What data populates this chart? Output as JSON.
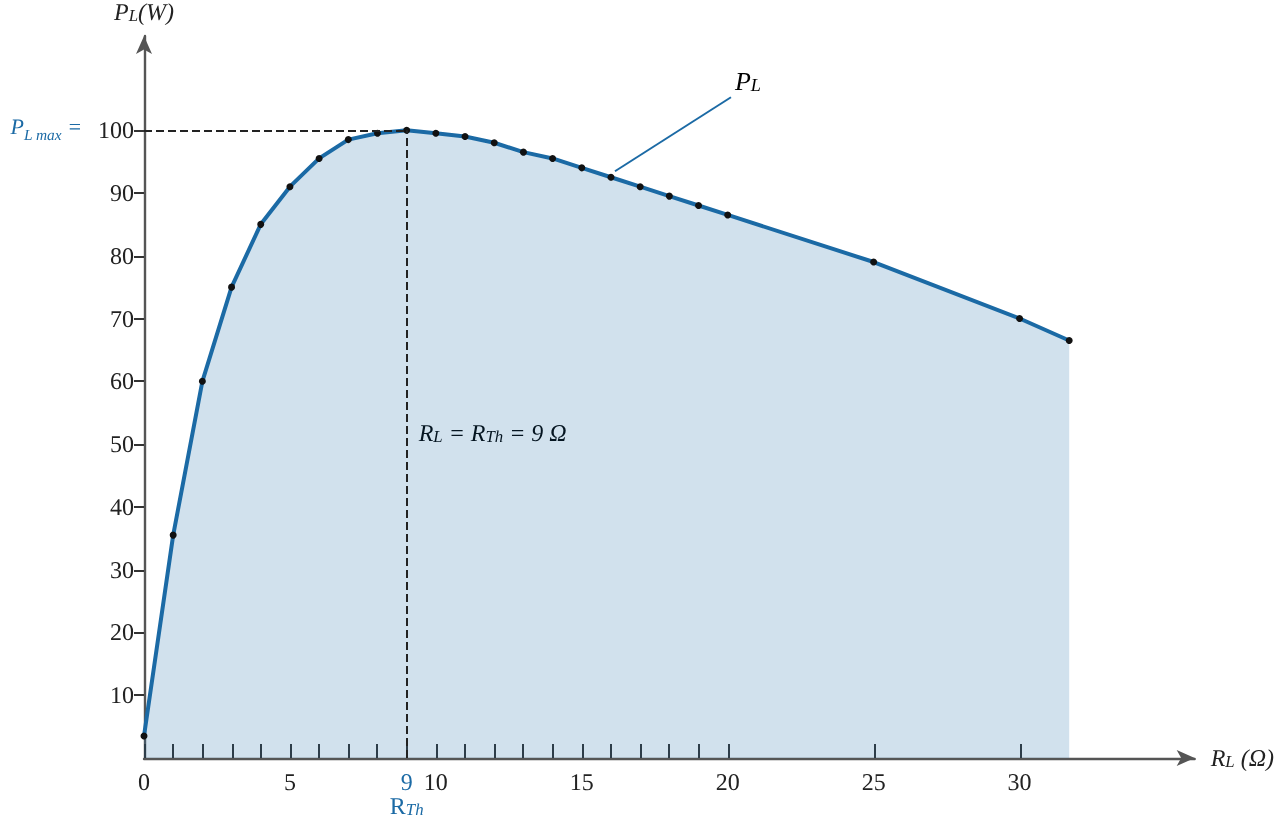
{
  "chart_data": {
    "type": "area",
    "xlabel": "R$_{L}$ (Ω)",
    "ylabel": "P$_{L}$(W)",
    "x": [
      0,
      1,
      2,
      3,
      4,
      5,
      6,
      7,
      8,
      9,
      10,
      11,
      12,
      13,
      14,
      15,
      16,
      17,
      18,
      19,
      20,
      25,
      30,
      31.7
    ],
    "series": [
      {
        "name": "P$_{L}$",
        "color": "#1b6aa5",
        "values": [
          3.5,
          35.5,
          60,
          75,
          85,
          91,
          95.5,
          98.5,
          99.5,
          100,
          99.5,
          99,
          98,
          96.5,
          95.5,
          94,
          92.5,
          91,
          89.5,
          88,
          86.5,
          79,
          70,
          66.5
        ]
      }
    ],
    "xlim": [
      0,
      36
    ],
    "ylim": [
      0,
      115
    ],
    "xticks": [
      0,
      {
        "value": 1,
        "label": null
      },
      {
        "value": 2,
        "label": null
      },
      {
        "value": 3,
        "label": null
      },
      {
        "value": 4,
        "label": null
      },
      5,
      {
        "value": 6,
        "label": null
      },
      {
        "value": 7,
        "label": null
      },
      {
        "value": 8,
        "label": null
      },
      {
        "value": 9,
        "label": "9\nR$_{Th}$"
      },
      10,
      {
        "value": 11,
        "label": null
      },
      {
        "value": 12,
        "label": null
      },
      {
        "value": 13,
        "label": null
      },
      {
        "value": 14,
        "label": null
      },
      15,
      {
        "value": 16,
        "label": null
      },
      {
        "value": 17,
        "label": null
      },
      {
        "value": 18,
        "label": null
      },
      {
        "value": 19,
        "label": null
      },
      20,
      25,
      30
    ],
    "yticks": [
      10,
      20,
      30,
      40,
      50,
      60,
      70,
      80,
      90,
      100
    ],
    "ref_lines": [
      {
        "axis": "x",
        "value": 9,
        "line_style": "dashed"
      },
      {
        "axis": "y",
        "value": 100,
        "line_style": "dashed"
      }
    ],
    "annotations": [
      "R$_{L}$ = R$_{Th}$ = 9 Ω",
      "P$_{L max}$ ="
    ],
    "marker": "circle",
    "grid": false
  }
}
